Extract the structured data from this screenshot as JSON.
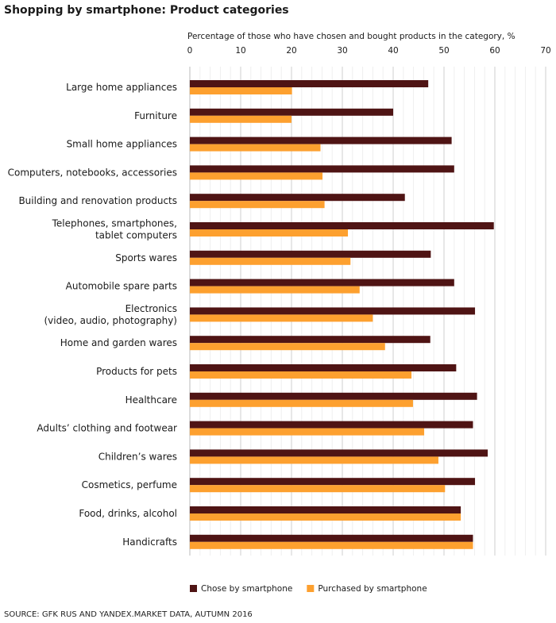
{
  "chart_data": {
    "type": "bar",
    "orientation": "horizontal",
    "title": "Shopping by smartphone: Product categories",
    "xlabel": "Percentage of those who have chosen and bought products in the category, %",
    "xlim": [
      0,
      70
    ],
    "xticks": [
      0,
      10,
      20,
      30,
      40,
      50,
      60,
      70
    ],
    "grid": true,
    "legend_position": "bottom",
    "categories": [
      [
        "Large home appliances"
      ],
      [
        "Furniture"
      ],
      [
        "Small home appliances"
      ],
      [
        "Computers, notebooks, accessories"
      ],
      [
        "Building and renovation products"
      ],
      [
        "Telephones, smartphones,",
        "tablet computers"
      ],
      [
        "Sports wares"
      ],
      [
        "Automobile spare parts"
      ],
      [
        "Electronics",
        "(video, audio, photography)"
      ],
      [
        "Home and garden wares"
      ],
      [
        "Products for pets"
      ],
      [
        "Healthcare"
      ],
      [
        "Adults’ clothing and footwear"
      ],
      [
        "Children’s wares"
      ],
      [
        "Cosmetics, perfume"
      ],
      [
        "Food, drinks, alcohol"
      ],
      [
        "Handicrafts"
      ]
    ],
    "series": [
      {
        "name": "Chose by smartphone",
        "color": "#4f1414",
        "values": [
          46.9,
          40.0,
          51.5,
          52.0,
          42.3,
          59.8,
          47.4,
          52.0,
          56.1,
          47.3,
          52.4,
          56.5,
          55.7,
          58.6,
          56.1,
          53.3,
          55.7
        ]
      },
      {
        "name": "Purchased by smartphone",
        "color": "#fda02f",
        "values": [
          20.1,
          20.0,
          25.7,
          26.1,
          26.5,
          31.1,
          31.6,
          33.4,
          36.0,
          38.4,
          43.6,
          43.9,
          46.1,
          48.9,
          50.2,
          53.3,
          55.7
        ]
      }
    ],
    "source": "SOURCE: GFK RUS AND YANDEX.MARKET DATA, AUTUMN 2016"
  }
}
